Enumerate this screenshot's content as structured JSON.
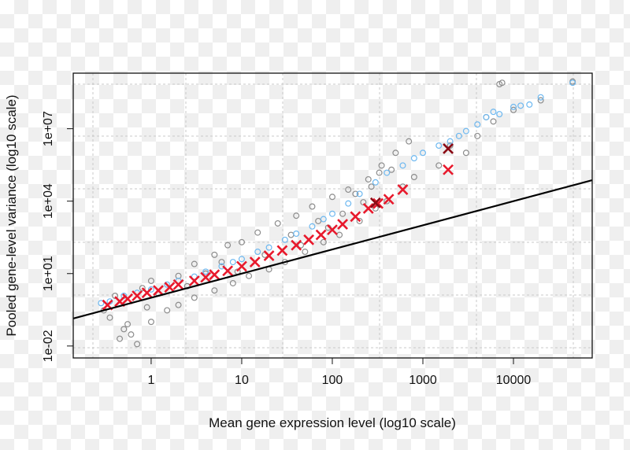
{
  "chart_data": {
    "type": "scatter",
    "title": "",
    "xlabel": "Mean gene expression level (log10 scale)",
    "ylabel": "Pooled gene-level variance (log10 scale)",
    "x_scale": "log10",
    "y_scale": "log10",
    "xlim": [
      0.138,
      74000
    ],
    "ylim": [
      0.0032,
      2000000000
    ],
    "grid": true,
    "x_ticks": [
      {
        "value": 1,
        "label": "1"
      },
      {
        "value": 10,
        "label": "10"
      },
      {
        "value": 100,
        "label": "100"
      },
      {
        "value": 1000,
        "label": "1000"
      },
      {
        "value": 10000,
        "label": "10000"
      }
    ],
    "y_ticks": [
      {
        "value": 0.01,
        "label": "1e-02"
      },
      {
        "value": 10,
        "label": "1e+01"
      },
      {
        "value": 10000,
        "label": "1e+04"
      },
      {
        "value": 10000000,
        "label": "1e+07"
      }
    ],
    "colors": {
      "grey": "#8c8c8c",
      "blue": "#6db8f0",
      "red": "#e8192c",
      "darkred": "#8b0a14",
      "line": "#000000"
    },
    "series": [
      {
        "marker": "open-circle",
        "color": "#8c8c8c",
        "points": [
          [
            0.3,
            0.3
          ],
          [
            0.35,
            0.15
          ],
          [
            0.4,
            1.2
          ],
          [
            0.5,
            0.05
          ],
          [
            0.45,
            0.02
          ],
          [
            0.6,
            0.03
          ],
          [
            0.7,
            0.012
          ],
          [
            0.55,
            0.08
          ],
          [
            0.8,
            2.5
          ],
          [
            1,
            0.1
          ],
          [
            1,
            5
          ],
          [
            1.5,
            0.3
          ],
          [
            2,
            8
          ],
          [
            2,
            0.5
          ],
          [
            3,
            25
          ],
          [
            3,
            1
          ],
          [
            5,
            60
          ],
          [
            5,
            2
          ],
          [
            7,
            150
          ],
          [
            8,
            4
          ],
          [
            10,
            200
          ],
          [
            12,
            8
          ],
          [
            15,
            500
          ],
          [
            20,
            15
          ],
          [
            25,
            1200
          ],
          [
            30,
            30
          ],
          [
            40,
            2500
          ],
          [
            50,
            80
          ],
          [
            60,
            6000
          ],
          [
            80,
            200
          ],
          [
            100,
            15000
          ],
          [
            120,
            400
          ],
          [
            150,
            30000
          ],
          [
            200,
            1500
          ],
          [
            250,
            80000
          ],
          [
            300,
            5000
          ],
          [
            350,
            300000
          ],
          [
            400,
            10000
          ],
          [
            500,
            1000000
          ],
          [
            600,
            40000
          ],
          [
            700,
            3000000
          ],
          [
            800,
            100000
          ],
          [
            1500,
            300000
          ],
          [
            2000,
            2000000
          ],
          [
            3000,
            1000000
          ],
          [
            4000,
            5000000
          ],
          [
            5000,
            30000000
          ],
          [
            6000,
            20000000
          ],
          [
            7000,
            700000000
          ],
          [
            7500,
            800000000
          ],
          [
            45000,
            900000000
          ],
          [
            20000,
            150000000
          ],
          [
            10000,
            60000000
          ],
          [
            0.9,
            0.4
          ],
          [
            1.2,
            1.5
          ],
          [
            2.5,
            3
          ],
          [
            4,
            10
          ],
          [
            6,
            30
          ],
          [
            9,
            12
          ],
          [
            18,
            60
          ],
          [
            35,
            400
          ],
          [
            45,
            150
          ],
          [
            70,
            1500
          ],
          [
            90,
            800
          ],
          [
            130,
            3000
          ],
          [
            180,
            20000
          ],
          [
            220,
            9000
          ],
          [
            270,
            40000
          ],
          [
            330,
            150000
          ],
          [
            450,
            200000
          ]
        ]
      },
      {
        "marker": "open-circle",
        "color": "#6db8f0",
        "points": [
          [
            0.28,
            0.6
          ],
          [
            0.35,
            0.7
          ],
          [
            0.5,
            1.2
          ],
          [
            0.7,
            1.6
          ],
          [
            1,
            2.2
          ],
          [
            1.5,
            3.5
          ],
          [
            2,
            5
          ],
          [
            3,
            7.5
          ],
          [
            4,
            12
          ],
          [
            6,
            20
          ],
          [
            8,
            30
          ],
          [
            10,
            40
          ],
          [
            15,
            80
          ],
          [
            20,
            120
          ],
          [
            30,
            250
          ],
          [
            40,
            450
          ],
          [
            60,
            900
          ],
          [
            80,
            1800
          ],
          [
            100,
            3000
          ],
          [
            150,
            8000
          ],
          [
            200,
            20000
          ],
          [
            300,
            60000
          ],
          [
            400,
            150000
          ],
          [
            600,
            300000
          ],
          [
            800,
            600000
          ],
          [
            1000,
            1000000
          ],
          [
            1500,
            2000000
          ],
          [
            2000,
            3000000
          ],
          [
            3000,
            8000000
          ],
          [
            4000,
            15000000
          ],
          [
            5000,
            30000000
          ],
          [
            7000,
            40000000
          ],
          [
            10000,
            80000000
          ],
          [
            15000,
            100000000
          ],
          [
            20000,
            200000000
          ],
          [
            45000,
            800000000
          ],
          [
            12000,
            90000000
          ],
          [
            6000,
            50000000
          ],
          [
            2500,
            5000000
          ]
        ]
      },
      {
        "marker": "x",
        "color": "#e8192c",
        "points": [
          [
            0.33,
            0.5
          ],
          [
            0.45,
            0.7
          ],
          [
            0.55,
            0.9
          ],
          [
            0.7,
            1.2
          ],
          [
            0.9,
            1.6
          ],
          [
            1.2,
            2
          ],
          [
            1.6,
            2.7
          ],
          [
            2,
            3.5
          ],
          [
            3,
            5
          ],
          [
            4,
            7
          ],
          [
            5,
            9
          ],
          [
            7,
            13
          ],
          [
            10,
            20
          ],
          [
            14,
            30
          ],
          [
            20,
            55
          ],
          [
            28,
            90
          ],
          [
            40,
            150
          ],
          [
            55,
            250
          ],
          [
            75,
            400
          ],
          [
            100,
            650
          ],
          [
            130,
            1100
          ],
          [
            180,
            2300
          ],
          [
            250,
            5000
          ],
          [
            320,
            8000
          ],
          [
            420,
            12000
          ],
          [
            600,
            30000
          ],
          [
            1900,
            200000
          ]
        ]
      },
      {
        "marker": "x",
        "color": "#8b0a14",
        "points": [
          [
            1900,
            1500000
          ],
          [
            300,
            8500
          ]
        ]
      },
      {
        "type": "line",
        "color": "#000000",
        "equation": "y = x",
        "points": [
          [
            0.138,
            0.138
          ],
          [
            74000,
            74000
          ]
        ]
      }
    ]
  }
}
